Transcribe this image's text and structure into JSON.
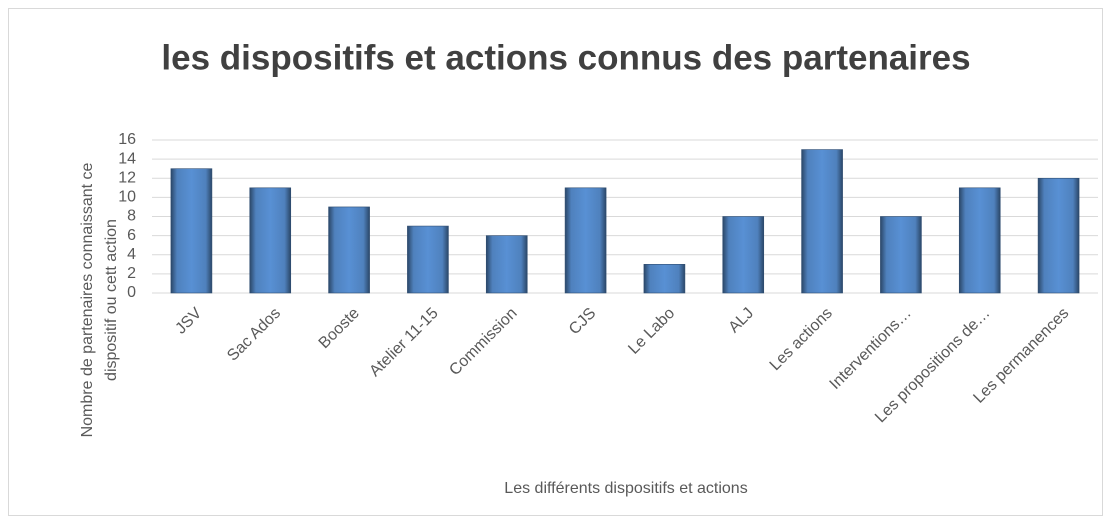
{
  "chart_data": {
    "type": "bar",
    "title": "les dispositifs et actions connus des partenaires",
    "categories": [
      "JSV",
      "Sac Ados",
      "Booste",
      "Atelier 11-15",
      "Commission",
      "CJS",
      "Le Labo",
      "ALJ",
      "Les actions",
      "Interventions…",
      "Les propositions de…",
      "Les permanences"
    ],
    "values": [
      13,
      11,
      9,
      7,
      6,
      11,
      3,
      8,
      15,
      8,
      11,
      12
    ],
    "color": "#4f81bd",
    "ylim": [
      0,
      16
    ],
    "yticks": [
      0,
      2,
      4,
      6,
      8,
      10,
      12,
      14,
      16
    ],
    "grid": true,
    "xlabel": "Les différents dispositifs et actions",
    "ylabel": [
      "Nombre de partenaires connaissant ce",
      "dispositif ou cett action"
    ]
  }
}
